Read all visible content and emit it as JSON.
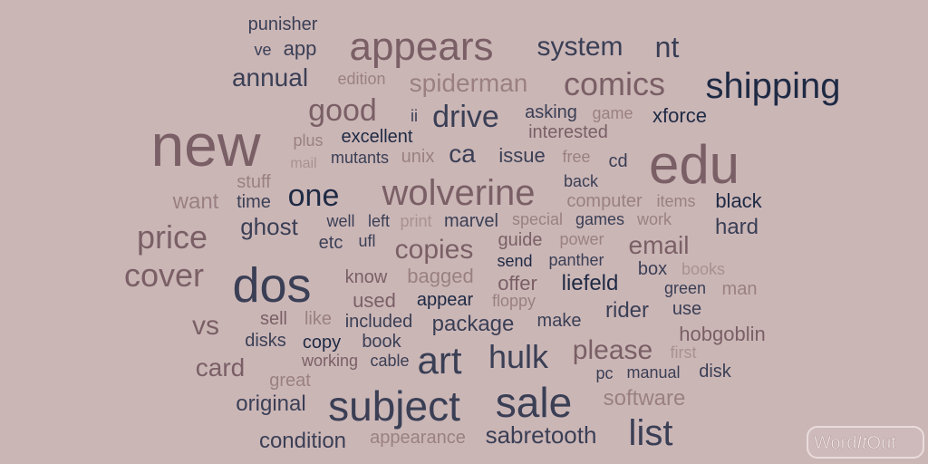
{
  "colors": {
    "background": "#cbb6b6",
    "navy": "#1e2a44",
    "slate": "#3a3f55",
    "mauve": "#7a6066",
    "rose": "#9a8082",
    "light": "#a8928f"
  },
  "logo": {
    "text": "WordItOut",
    "part1": "Word",
    "part2": "It",
    "part3": "Out"
  },
  "words": [
    {
      "text": "new",
      "size": 66,
      "color": "mauve"
    },
    {
      "text": "appears",
      "size": 44,
      "color": "mauve"
    },
    {
      "text": "edu",
      "size": 60,
      "color": "mauve"
    },
    {
      "text": "shipping",
      "size": 40,
      "color": "navy"
    },
    {
      "text": "dos",
      "size": 54,
      "color": "slate"
    },
    {
      "text": "subject",
      "size": 46,
      "color": "slate"
    },
    {
      "text": "sale",
      "size": 46,
      "color": "slate"
    },
    {
      "text": "art",
      "size": 42,
      "color": "slate"
    },
    {
      "text": "wolverine",
      "size": 40,
      "color": "mauve"
    },
    {
      "text": "comics",
      "size": 36,
      "color": "mauve"
    },
    {
      "text": "list",
      "size": 40,
      "color": "slate"
    },
    {
      "text": "cover",
      "size": 36,
      "color": "mauve"
    },
    {
      "text": "price",
      "size": 36,
      "color": "mauve"
    },
    {
      "text": "hulk",
      "size": 36,
      "color": "slate"
    },
    {
      "text": "one",
      "size": 34,
      "color": "navy"
    },
    {
      "text": "good",
      "size": 34,
      "color": "mauve"
    },
    {
      "text": "drive",
      "size": 34,
      "color": "slate"
    },
    {
      "text": "nt",
      "size": 32,
      "color": "slate"
    },
    {
      "text": "system",
      "size": 30,
      "color": "slate"
    },
    {
      "text": "copies",
      "size": 30,
      "color": "mauve"
    },
    {
      "text": "please",
      "size": 30,
      "color": "mauve"
    },
    {
      "text": "vs",
      "size": 30,
      "color": "mauve"
    },
    {
      "text": "card",
      "size": 28,
      "color": "mauve"
    },
    {
      "text": "spiderman",
      "size": 28,
      "color": "rose"
    },
    {
      "text": "email",
      "size": 28,
      "color": "mauve"
    },
    {
      "text": "annual",
      "size": 28,
      "color": "slate"
    },
    {
      "text": "ghost",
      "size": 26,
      "color": "slate"
    },
    {
      "text": "package",
      "size": 24,
      "color": "slate"
    },
    {
      "text": "sabretooth",
      "size": 26,
      "color": "slate"
    },
    {
      "text": "condition",
      "size": 24,
      "color": "slate"
    },
    {
      "text": "original",
      "size": 24,
      "color": "slate"
    },
    {
      "text": "software",
      "size": 24,
      "color": "rose"
    },
    {
      "text": "hard",
      "size": 24,
      "color": "slate"
    },
    {
      "text": "ca",
      "size": 28,
      "color": "slate"
    },
    {
      "text": "want",
      "size": 24,
      "color": "rose"
    },
    {
      "text": "liefeld",
      "size": 24,
      "color": "navy"
    },
    {
      "text": "rider",
      "size": 24,
      "color": "slate"
    },
    {
      "text": "black",
      "size": 22,
      "color": "navy"
    },
    {
      "text": "hobgoblin",
      "size": 22,
      "color": "mauve"
    },
    {
      "text": "bagged",
      "size": 22,
      "color": "rose"
    },
    {
      "text": "used",
      "size": 22,
      "color": "mauve"
    },
    {
      "text": "offer",
      "size": 22,
      "color": "mauve"
    },
    {
      "text": "issue",
      "size": 22,
      "color": "slate"
    },
    {
      "text": "xforce",
      "size": 22,
      "color": "navy"
    },
    {
      "text": "app",
      "size": 22,
      "color": "slate"
    },
    {
      "text": "punisher",
      "size": 20,
      "color": "slate"
    },
    {
      "text": "excellent",
      "size": 20,
      "color": "navy"
    },
    {
      "text": "interested",
      "size": 20,
      "color": "mauve"
    },
    {
      "text": "asking",
      "size": 20,
      "color": "slate"
    },
    {
      "text": "cd",
      "size": 20,
      "color": "slate"
    },
    {
      "text": "unix",
      "size": 20,
      "color": "rose"
    },
    {
      "text": "make",
      "size": 20,
      "color": "slate"
    },
    {
      "text": "appearance",
      "size": 20,
      "color": "rose"
    },
    {
      "text": "great",
      "size": 20,
      "color": "rose"
    },
    {
      "text": "copy",
      "size": 20,
      "color": "navy"
    },
    {
      "text": "appear",
      "size": 20,
      "color": "navy"
    },
    {
      "text": "book",
      "size": 20,
      "color": "slate"
    },
    {
      "text": "use",
      "size": 20,
      "color": "slate"
    },
    {
      "text": "man",
      "size": 20,
      "color": "rose"
    },
    {
      "text": "box",
      "size": 20,
      "color": "slate"
    },
    {
      "text": "disk",
      "size": 20,
      "color": "slate"
    },
    {
      "text": "guide",
      "size": 20,
      "color": "mauve"
    },
    {
      "text": "marvel",
      "size": 20,
      "color": "slate"
    },
    {
      "text": "etc",
      "size": 20,
      "color": "slate"
    },
    {
      "text": "sell",
      "size": 20,
      "color": "mauve"
    },
    {
      "text": "know",
      "size": 20,
      "color": "mauve"
    },
    {
      "text": "like",
      "size": 20,
      "color": "rose"
    },
    {
      "text": "time",
      "size": 20,
      "color": "slate"
    },
    {
      "text": "stuff",
      "size": 20,
      "color": "rose"
    },
    {
      "text": "included",
      "size": 20,
      "color": "slate"
    },
    {
      "text": "disks",
      "size": 20,
      "color": "slate"
    },
    {
      "text": "computer",
      "size": 20,
      "color": "rose"
    },
    {
      "text": "ve",
      "size": 18,
      "color": "slate"
    },
    {
      "text": "edition",
      "size": 18,
      "color": "rose"
    },
    {
      "text": "free",
      "size": 18,
      "color": "rose"
    },
    {
      "text": "back",
      "size": 18,
      "color": "slate"
    },
    {
      "text": "well",
      "size": 18,
      "color": "slate"
    },
    {
      "text": "left",
      "size": 18,
      "color": "slate"
    },
    {
      "text": "ufl",
      "size": 18,
      "color": "slate"
    },
    {
      "text": "plus",
      "size": 18,
      "color": "rose"
    },
    {
      "text": "mutants",
      "size": 18,
      "color": "slate"
    },
    {
      "text": "send",
      "size": 18,
      "color": "navy"
    },
    {
      "text": "panther",
      "size": 18,
      "color": "slate"
    },
    {
      "text": "power",
      "size": 18,
      "color": "rose"
    },
    {
      "text": "pc",
      "size": 18,
      "color": "slate"
    },
    {
      "text": "manual",
      "size": 18,
      "color": "slate"
    },
    {
      "text": "cable",
      "size": 18,
      "color": "slate"
    },
    {
      "text": "green",
      "size": 18,
      "color": "slate"
    },
    {
      "text": "game",
      "size": 18,
      "color": "rose"
    },
    {
      "text": "ii",
      "size": 18,
      "color": "slate"
    },
    {
      "text": "print",
      "size": 18,
      "color": "light"
    },
    {
      "text": "special",
      "size": 18,
      "color": "rose"
    },
    {
      "text": "games",
      "size": 18,
      "color": "slate"
    },
    {
      "text": "work",
      "size": 18,
      "color": "rose"
    },
    {
      "text": "items",
      "size": 18,
      "color": "rose"
    },
    {
      "text": "mail",
      "size": 16,
      "color": "light"
    },
    {
      "text": "books",
      "size": 18,
      "color": "light"
    },
    {
      "text": "floppy",
      "size": 18,
      "color": "rose"
    },
    {
      "text": "working",
      "size": 18,
      "color": "mauve"
    },
    {
      "text": "first",
      "size": 18,
      "color": "light"
    }
  ]
}
